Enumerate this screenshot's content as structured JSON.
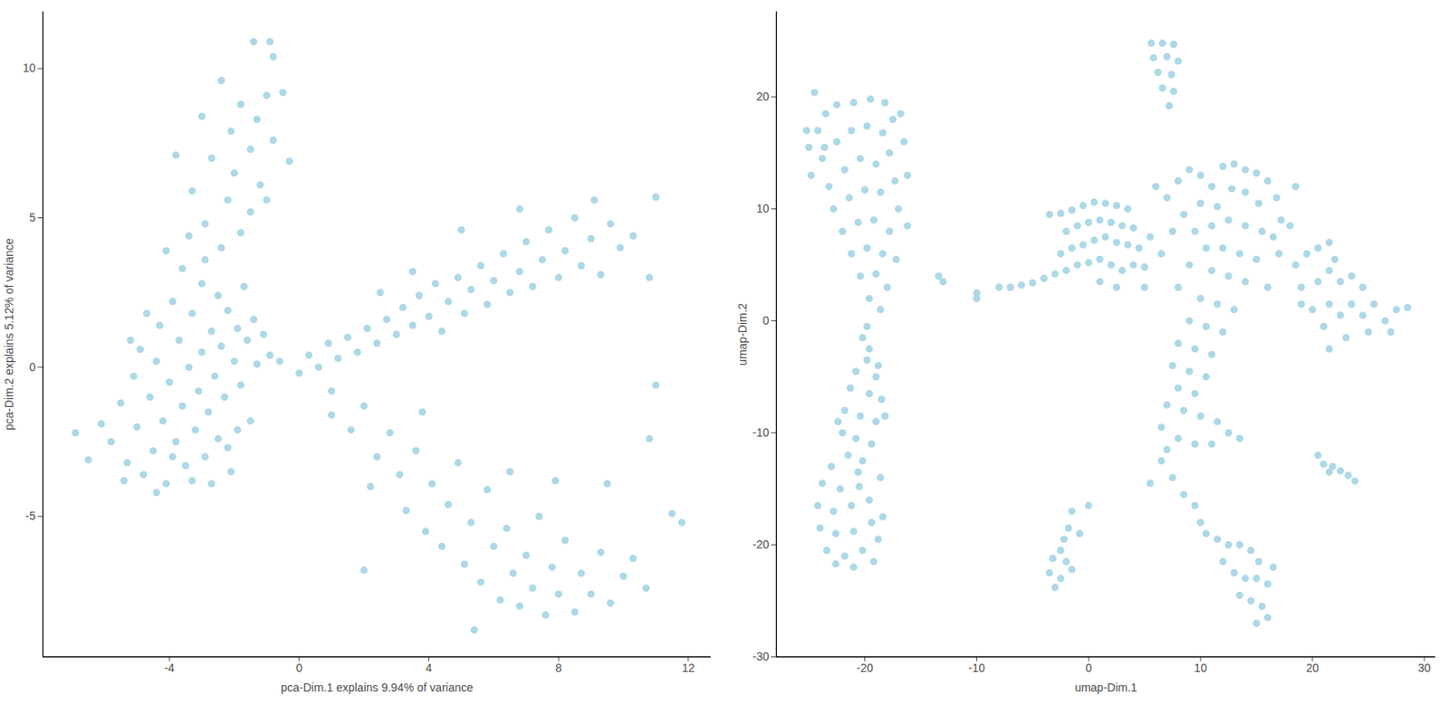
{
  "chart_data": [
    {
      "type": "scatter",
      "xlabel": "pca-Dim.1 explains 9.94% of variance",
      "ylabel": "pca-Dim.2 explains 5.12% of variance",
      "color": "#add8e6",
      "xlim": [
        -7.9,
        12.7
      ],
      "ylim": [
        -9.7,
        11.9
      ],
      "xticks": [
        -4,
        0,
        4,
        8,
        12
      ],
      "yticks": [
        -5,
        0,
        5,
        10
      ],
      "x": [
        -5.8,
        -5.5,
        -5.3,
        -5.1,
        -5.0,
        -4.9,
        -4.8,
        -4.6,
        -4.5,
        -4.4,
        -4.3,
        -4.2,
        -4.1,
        -4.0,
        -3.9,
        -3.8,
        -3.7,
        -3.6,
        -3.5,
        -3.4,
        -3.3,
        -3.2,
        -3.1,
        -3.0,
        -3.0,
        -2.9,
        -2.8,
        -2.7,
        -2.6,
        -2.5,
        -2.5,
        -2.4,
        -2.3,
        -2.2,
        -2.1,
        -2.0,
        -1.9,
        -1.8,
        -1.7,
        -1.6,
        -1.5,
        -1.4,
        -1.3,
        -1.1,
        -0.9,
        -4.7,
        -5.2,
        -6.1,
        -6.5,
        -3.9,
        -3.3,
        -4.4,
        -2.7,
        -2.2,
        -3.6,
        -2.9,
        -4.1,
        -6.9,
        -5.4,
        -1.9,
        -2.4,
        -1.8,
        -2.9,
        -1.5,
        -2.2,
        -3.3,
        -1.2,
        -2.0,
        -2.7,
        -1.5,
        -0.8,
        -2.1,
        -1.3,
        -3.0,
        -1.8,
        -1.0,
        -0.5,
        -2.4,
        -1.4,
        -0.9,
        -0.8,
        -3.8,
        -0.3,
        -1.0,
        -3.4,
        -0.6,
        0.0,
        0.3,
        0.6,
        0.9,
        1.2,
        1.5,
        1.8,
        2.1,
        2.4,
        2.7,
        3.0,
        3.2,
        3.5,
        3.7,
        4.0,
        4.2,
        4.4,
        4.6,
        4.9,
        5.1,
        5.3,
        5.6,
        5.8,
        6.0,
        6.3,
        6.5,
        6.8,
        7.0,
        7.2,
        7.5,
        7.7,
        8.0,
        8.2,
        8.5,
        8.7,
        9.0,
        9.3,
        9.6,
        9.9,
        10.3,
        10.8,
        11.0,
        3.5,
        2.5,
        6.8,
        9.1,
        5.0,
        1.0,
        11.0,
        1.0,
        1.6,
        2.0,
        2.4,
        2.2,
        2.8,
        3.1,
        3.3,
        3.6,
        3.9,
        4.1,
        4.4,
        4.6,
        4.9,
        5.1,
        5.3,
        5.6,
        5.8,
        6.0,
        6.2,
        6.4,
        6.6,
        6.8,
        7.0,
        7.2,
        7.4,
        7.6,
        7.8,
        8.0,
        8.2,
        8.5,
        8.7,
        9.0,
        9.3,
        9.6,
        10.0,
        10.3,
        10.7,
        5.4,
        2.0,
        11.5,
        11.8,
        10.8,
        9.5,
        7.9,
        6.5,
        3.8
      ],
      "y": [
        -2.5,
        -1.2,
        -3.2,
        -0.3,
        -2.0,
        0.6,
        -3.6,
        -1.0,
        -2.8,
        0.2,
        1.4,
        -1.8,
        -3.9,
        -0.5,
        2.2,
        -2.5,
        0.9,
        -1.3,
        -3.3,
        0.0,
        1.8,
        -2.1,
        -0.8,
        2.8,
        0.5,
        -3.0,
        -1.5,
        1.2,
        -0.3,
        2.4,
        -2.4,
        0.7,
        -1.0,
        1.9,
        -3.5,
        0.2,
        1.3,
        -0.6,
        2.7,
        0.9,
        -1.8,
        1.6,
        0.1,
        1.1,
        0.4,
        1.8,
        0.9,
        -1.9,
        -3.1,
        -3.0,
        -3.8,
        -4.2,
        -3.9,
        -2.7,
        3.3,
        3.6,
        3.9,
        -2.2,
        -3.8,
        -2.1,
        4.0,
        4.5,
        4.8,
        5.2,
        5.6,
        5.9,
        6.1,
        6.5,
        7.0,
        7.3,
        7.6,
        7.9,
        8.3,
        8.4,
        8.8,
        9.1,
        9.2,
        9.6,
        10.9,
        10.9,
        10.4,
        7.1,
        6.9,
        5.6,
        4.4,
        0.2,
        -0.2,
        0.4,
        0.0,
        0.8,
        0.3,
        1.0,
        0.5,
        1.3,
        0.8,
        1.6,
        1.1,
        2.0,
        1.4,
        2.4,
        1.7,
        2.8,
        1.2,
        2.2,
        3.0,
        1.8,
        2.6,
        3.4,
        2.1,
        2.9,
        3.8,
        2.5,
        3.2,
        4.2,
        2.7,
        3.6,
        4.6,
        3.0,
        3.9,
        5.0,
        3.4,
        4.3,
        3.1,
        4.8,
        4.0,
        4.4,
        3.0,
        5.7,
        3.2,
        2.5,
        5.3,
        5.6,
        4.6,
        -0.8,
        -0.6,
        -1.6,
        -2.1,
        -1.3,
        -3.0,
        -4.0,
        -2.2,
        -3.6,
        -4.8,
        -2.8,
        -5.5,
        -3.9,
        -6.0,
        -4.6,
        -3.2,
        -6.6,
        -5.2,
        -7.2,
        -4.1,
        -6.0,
        -7.8,
        -5.4,
        -6.9,
        -8.0,
        -6.3,
        -7.4,
        -5.0,
        -8.3,
        -6.7,
        -7.6,
        -5.8,
        -8.2,
        -6.9,
        -7.6,
        -6.2,
        -7.9,
        -7.0,
        -6.4,
        -7.4,
        -8.8,
        -6.8,
        -4.9,
        -5.2,
        -2.4,
        -3.9,
        -3.8,
        -3.5,
        -1.5
      ]
    },
    {
      "type": "scatter",
      "xlabel": "umap-Dim.1",
      "ylabel": "umap-Dim.2",
      "color": "#add8e6",
      "xlim": [
        -27.9,
        31
      ],
      "ylim": [
        -30,
        27.6
      ],
      "xticks": [
        -20,
        -10,
        0,
        10,
        20,
        30
      ],
      "yticks": [
        -30,
        -20,
        -10,
        0,
        10,
        20
      ],
      "x": [
        -24.5,
        -25,
        -24.2,
        -23.5,
        -22.5,
        -21,
        -19.5,
        -18.2,
        -17.5,
        -16.5,
        -16.2,
        -24.8,
        -23.8,
        -22.5,
        -21.2,
        -19.8,
        -18.4,
        -17.8,
        -23.2,
        -21.8,
        -20.4,
        -19.0,
        -17.3,
        -22.8,
        -21.4,
        -20,
        -18.6,
        -17,
        -22,
        -20.6,
        -19.2,
        -17.8,
        -21.2,
        -19.8,
        -18.4,
        -17.2,
        -20.4,
        -19,
        -18,
        -19.6,
        -18.6,
        -16.2,
        -23.6,
        -25.2,
        -16.8,
        -19.8,
        -20.2,
        -19.6,
        -19.8,
        -20.8,
        -19,
        -21.3,
        -19.6,
        -18.5,
        -21.8,
        -20.4,
        -19,
        -22,
        -20.8,
        -19.4,
        -21.5,
        -20.2,
        -18.8,
        -18.2,
        -22.4,
        -20.6,
        -23,
        -23.8,
        -22.2,
        -20.5,
        -24.2,
        -22.8,
        -21.2,
        -19.6,
        -24,
        -22.6,
        -21,
        -19.4,
        -23.4,
        -21.8,
        -20.2,
        -18.8,
        -22.6,
        -21,
        -19.2,
        -18.4,
        -18.6,
        -13.4,
        -13,
        5.6,
        6.6,
        7.6,
        5.8,
        7.0,
        8.0,
        6.2,
        7.4,
        6.6,
        7.6,
        7.2,
        -8,
        -7,
        -6,
        -5,
        -4,
        -3,
        -2.5,
        -3.5,
        -2.5,
        -1.5,
        -0.5,
        0.5,
        1.5,
        2.5,
        3.5,
        -2,
        -1,
        0,
        1,
        2,
        3,
        4,
        -1.5,
        -0.5,
        0.5,
        1.5,
        2.5,
        3.5,
        4.5,
        -1,
        0,
        1,
        2,
        3,
        4,
        5,
        1,
        2.5,
        -10,
        -10,
        -2,
        5.5,
        6,
        7,
        8,
        9,
        10,
        11,
        12,
        13,
        14,
        15,
        16,
        16.8,
        17.2,
        16.5,
        15.2,
        14,
        12.8,
        11.5,
        10,
        8.5,
        7.5,
        9.5,
        11,
        12.5,
        14,
        15.5,
        17,
        18,
        10.5,
        12,
        13.5,
        15,
        9,
        11,
        12.5,
        14,
        16,
        8,
        10,
        11.5,
        13,
        9,
        10.5,
        12,
        8,
        9.5,
        11,
        7.5,
        9,
        10.5,
        8,
        9.5,
        7,
        8.5,
        10,
        11.5,
        12.5,
        13.5,
        6.5,
        8,
        9.5,
        11,
        7,
        5,
        6.5,
        18.5,
        18.5,
        19.5,
        20.5,
        21.5,
        22,
        19,
        20.5,
        21.5,
        22.5,
        23.5,
        24.5,
        20,
        21.5,
        22.5,
        23.5,
        24.5,
        25.5,
        26.5,
        27.5,
        28.5,
        25,
        23,
        21.5,
        21,
        27,
        19,
        6.5,
        7.5,
        8.5,
        9.5,
        10,
        10.5,
        11.5,
        12.5,
        13.5,
        14.5,
        15.2,
        12,
        13,
        14,
        15,
        16,
        13.5,
        14.5,
        15.5,
        16,
        15,
        16.5,
        5.5,
        -1.5,
        -1.8,
        -2.2,
        -2.5,
        -3.2,
        -2,
        -3.5,
        -2.5,
        -3,
        -1.5,
        0,
        -0.8,
        20.5,
        21,
        21.8,
        22.5,
        23.2,
        23.8,
        21.5
      ],
      "y": [
        20.4,
        15.5,
        17.0,
        18.5,
        19.3,
        19.5,
        19.8,
        19.5,
        18,
        16,
        13,
        13,
        14.5,
        16,
        17,
        17.4,
        16.8,
        15,
        12,
        13.5,
        14.5,
        14,
        12.5,
        10,
        11,
        11.7,
        11.5,
        10,
        8,
        8.8,
        9,
        8,
        6,
        6.5,
        6,
        5.5,
        4,
        4.2,
        3,
        2,
        1,
        8.5,
        15.5,
        17,
        18.5,
        -0.5,
        -1.5,
        -2.5,
        -3.5,
        -4.5,
        -5,
        -6,
        -6.5,
        -7,
        -8,
        -8.5,
        -9,
        -10,
        -10.5,
        -11,
        -12,
        -12.5,
        -4,
        -8.5,
        -9,
        -13.5,
        -13,
        -14.5,
        -15,
        -14.8,
        -16.5,
        -17,
        -16.5,
        -16,
        -18.5,
        -19,
        -18.8,
        -18,
        -20.5,
        -21,
        -20.5,
        -19.5,
        -21.7,
        -22,
        -21.5,
        -17.5,
        -14,
        4,
        3.5,
        24.8,
        24.8,
        24.7,
        23.5,
        23.6,
        23.2,
        22.2,
        22,
        20.8,
        20.5,
        19.2,
        3,
        3,
        3.2,
        3.4,
        3.8,
        4.2,
        6,
        9.5,
        9.6,
        9.9,
        10.3,
        10.6,
        10.5,
        10.3,
        10,
        8,
        8.5,
        8.8,
        9,
        8.8,
        8.5,
        8.3,
        6.5,
        6.8,
        7.2,
        7.5,
        7,
        6.8,
        6.5,
        5,
        5.2,
        5.5,
        5,
        4.5,
        5,
        4.8,
        3.5,
        3,
        2.5,
        2,
        4.5,
        7.5,
        12,
        11,
        12.5,
        13.5,
        13,
        12,
        13.8,
        14,
        13.5,
        13.2,
        12.5,
        11,
        9,
        7.5,
        10.5,
        11.5,
        11.8,
        10.2,
        10.5,
        9.5,
        8,
        8,
        8.5,
        9,
        8.5,
        8,
        6,
        8.5,
        6.5,
        6.5,
        6,
        5.5,
        5,
        4.5,
        4,
        3.5,
        3,
        3,
        2,
        1.5,
        1,
        0,
        -0.5,
        -1,
        -2,
        -2.5,
        -3,
        -4,
        -4.5,
        -5,
        -6,
        -6.5,
        -7.5,
        -8,
        -8.5,
        -9,
        -10,
        -10.5,
        -9.5,
        -10.5,
        -11,
        -11,
        -11.5,
        3,
        6,
        12,
        5,
        6,
        6.5,
        7,
        5.5,
        3,
        3.5,
        4.5,
        3.5,
        4,
        3,
        1,
        1.5,
        0.5,
        1.5,
        0.5,
        1.5,
        0,
        1,
        1.2,
        -1,
        -1.5,
        -2.5,
        -0.5,
        -1,
        1.5,
        -12.5,
        -14,
        -15.5,
        -16.5,
        -18,
        -19,
        -19.5,
        -20,
        -20,
        -20.5,
        -21.5,
        -21.5,
        -22.5,
        -23,
        -23,
        -23.5,
        -24.5,
        -25,
        -25.5,
        -26.5,
        -27,
        -22,
        -14.5,
        -17,
        -18.5,
        -19.5,
        -20.5,
        -21.2,
        -21.5,
        -22.5,
        -23,
        -23.8,
        -22.2,
        -16.5,
        -19,
        -12,
        -12.8,
        -13,
        -13.4,
        -13.8,
        -14.3,
        -13.5
      ]
    }
  ]
}
